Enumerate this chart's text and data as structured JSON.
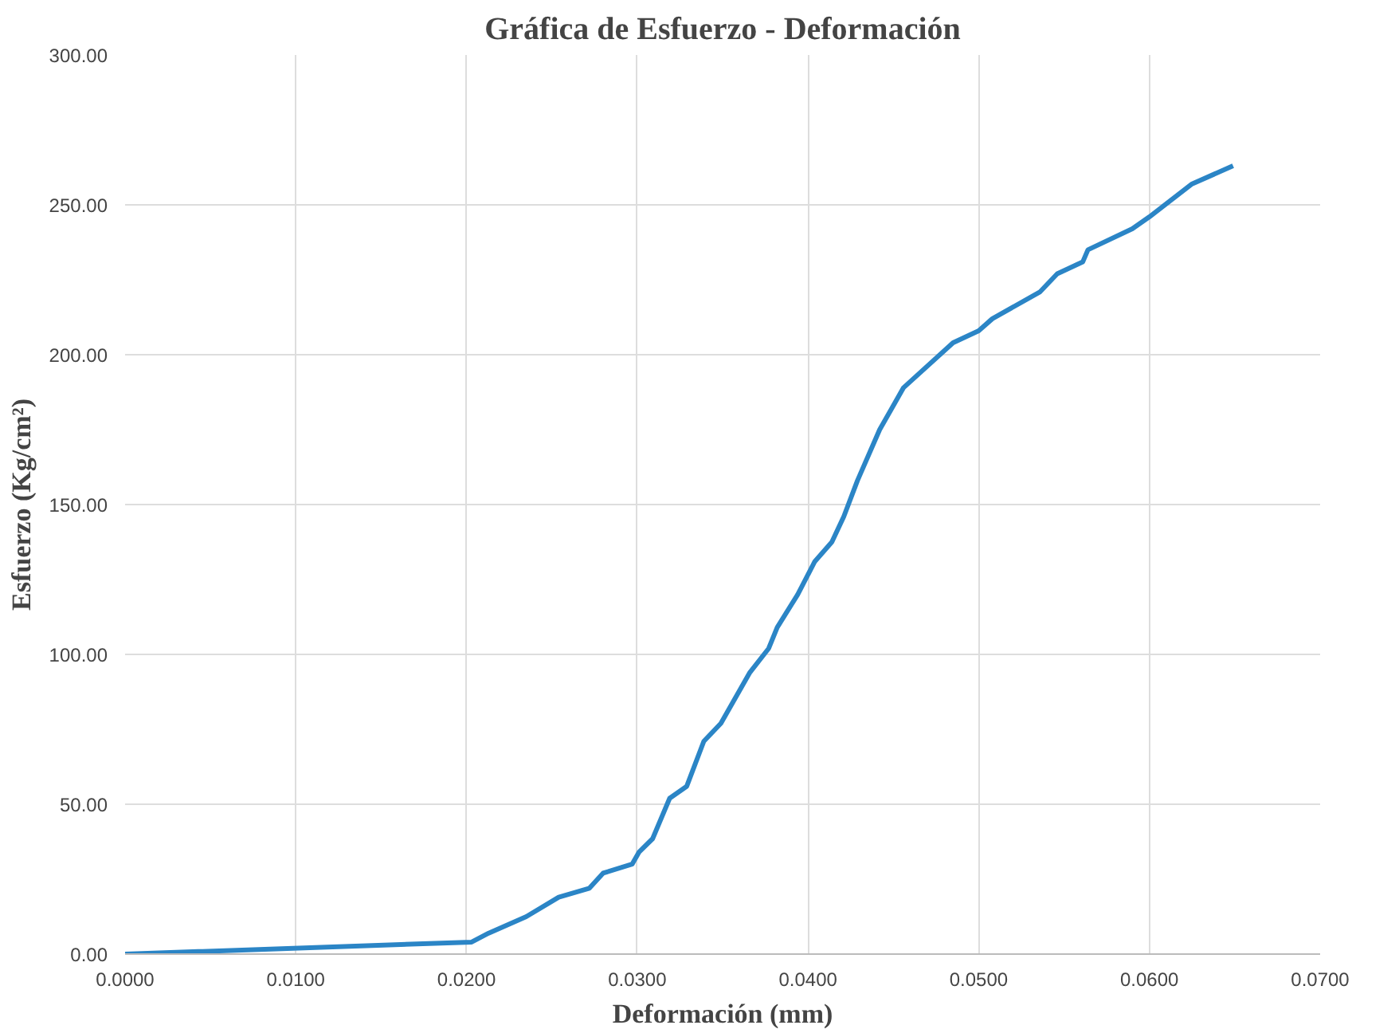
{
  "chart_data": {
    "type": "line",
    "title": "Gráfica de Esfuerzo - Deformación",
    "xlabel": "Deformación (mm)",
    "ylabel": "Esfuerzo (Kg/cm²)",
    "x": [
      0,
      0.0203,
      0.0213,
      0.0235,
      0.0254,
      0.0272,
      0.028,
      0.0297,
      0.0301,
      0.0309,
      0.0319,
      0.0329,
      0.0339,
      0.0349,
      0.0366,
      0.0377,
      0.0382,
      0.0394,
      0.0404,
      0.0414,
      0.0421,
      0.0429,
      0.0442,
      0.0456,
      0.0485,
      0.05,
      0.0508,
      0.0536,
      0.0546,
      0.0561,
      0.0564,
      0.059,
      0.06,
      0.0625,
      0.0649
    ],
    "series": [
      {
        "color": "#2b85c6",
        "values": [
          0,
          4,
          7,
          12.5,
          19,
          22,
          27,
          30,
          34,
          38.5,
          52,
          56,
          71,
          77,
          94,
          102,
          109,
          120,
          131,
          137.5,
          146,
          158,
          175,
          189,
          204,
          208,
          212,
          221,
          227,
          231,
          235,
          242,
          246,
          257,
          263
        ]
      }
    ],
    "xlim": [
      0,
      0.07
    ],
    "ylim": [
      0,
      300
    ],
    "xticks": [
      {
        "value": 0,
        "label": "0.0000"
      },
      {
        "value": 0.01,
        "label": "0.0100"
      },
      {
        "value": 0.02,
        "label": "0.0200"
      },
      {
        "value": 0.03,
        "label": "0.0300"
      },
      {
        "value": 0.04,
        "label": "0.0400"
      },
      {
        "value": 0.05,
        "label": "0.0500"
      },
      {
        "value": 0.06,
        "label": "0.0600"
      },
      {
        "value": 0.07,
        "label": "0.0700"
      }
    ],
    "yticks": [
      {
        "value": 0,
        "label": "0.00"
      },
      {
        "value": 50,
        "label": "50.00"
      },
      {
        "value": 100,
        "label": "100.00"
      },
      {
        "value": 150,
        "label": "150.00"
      },
      {
        "value": 200,
        "label": "200.00"
      },
      {
        "value": 250,
        "label": "250.00"
      },
      {
        "value": 300,
        "label": "300.00"
      }
    ],
    "grid": true,
    "marker": "none",
    "line_style": "solid"
  }
}
